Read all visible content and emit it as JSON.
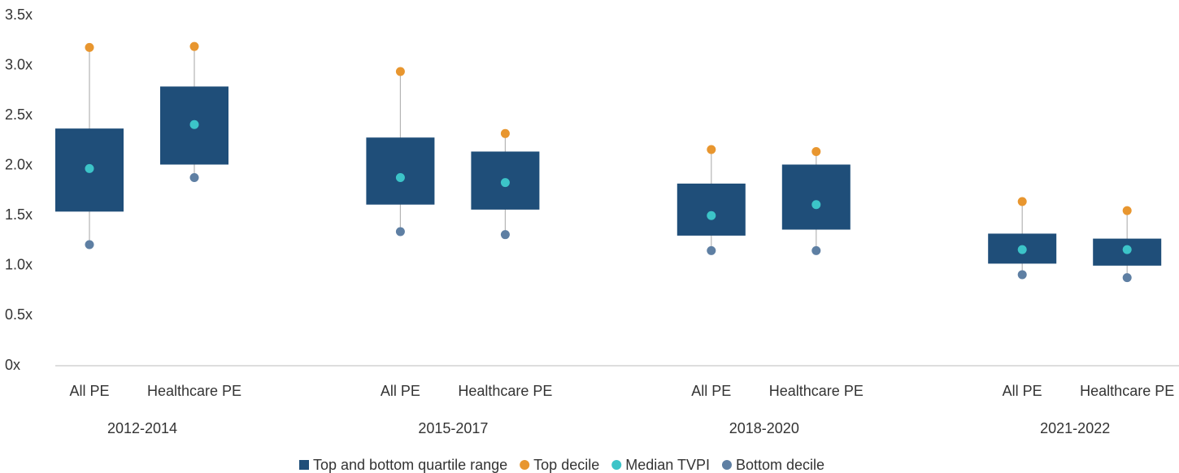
{
  "chart_data": {
    "type": "box",
    "categories": [
      "All PE",
      "Healthcare PE",
      "All PE",
      "Healthcare PE",
      "All PE",
      "Healthcare PE",
      "All PE",
      "Healthcare PE"
    ],
    "groups": [
      "2012-2014",
      "2015-2017",
      "2018-2020",
      "2021-2022"
    ],
    "series": [
      {
        "name": "Top and bottom quartile range",
        "color": "#1f4e79",
        "low": [
          1.54,
          2.01,
          1.61,
          1.56,
          1.3,
          1.36,
          1.02,
          1.0
        ],
        "high": [
          2.37,
          2.79,
          2.28,
          2.14,
          1.82,
          2.01,
          1.32,
          1.27
        ]
      },
      {
        "name": "Top decile",
        "color": "#e8962f",
        "values": [
          3.18,
          3.19,
          2.94,
          2.32,
          2.16,
          2.14,
          1.64,
          1.55
        ]
      },
      {
        "name": "Median TVPI",
        "color": "#3cc4c8",
        "values": [
          1.97,
          2.41,
          1.88,
          1.83,
          1.5,
          1.61,
          1.16,
          1.16
        ]
      },
      {
        "name": "Bottom decile",
        "color": "#5e7fa3",
        "values": [
          1.21,
          1.88,
          1.34,
          1.31,
          1.15,
          1.15,
          0.91,
          0.88
        ]
      }
    ],
    "ylim": [
      0,
      3.5
    ],
    "yticks": [
      {
        "value": 0,
        "label": "0x"
      },
      {
        "value": 0.5,
        "label": "0.5x"
      },
      {
        "value": 1,
        "label": "1.0x"
      },
      {
        "value": 1.5,
        "label": "1.5x"
      },
      {
        "value": 2,
        "label": "2.0x"
      },
      {
        "value": 2.5,
        "label": "2.5x"
      },
      {
        "value": 3,
        "label": "3.0x"
      },
      {
        "value": 3.5,
        "label": "3.5x"
      }
    ]
  }
}
